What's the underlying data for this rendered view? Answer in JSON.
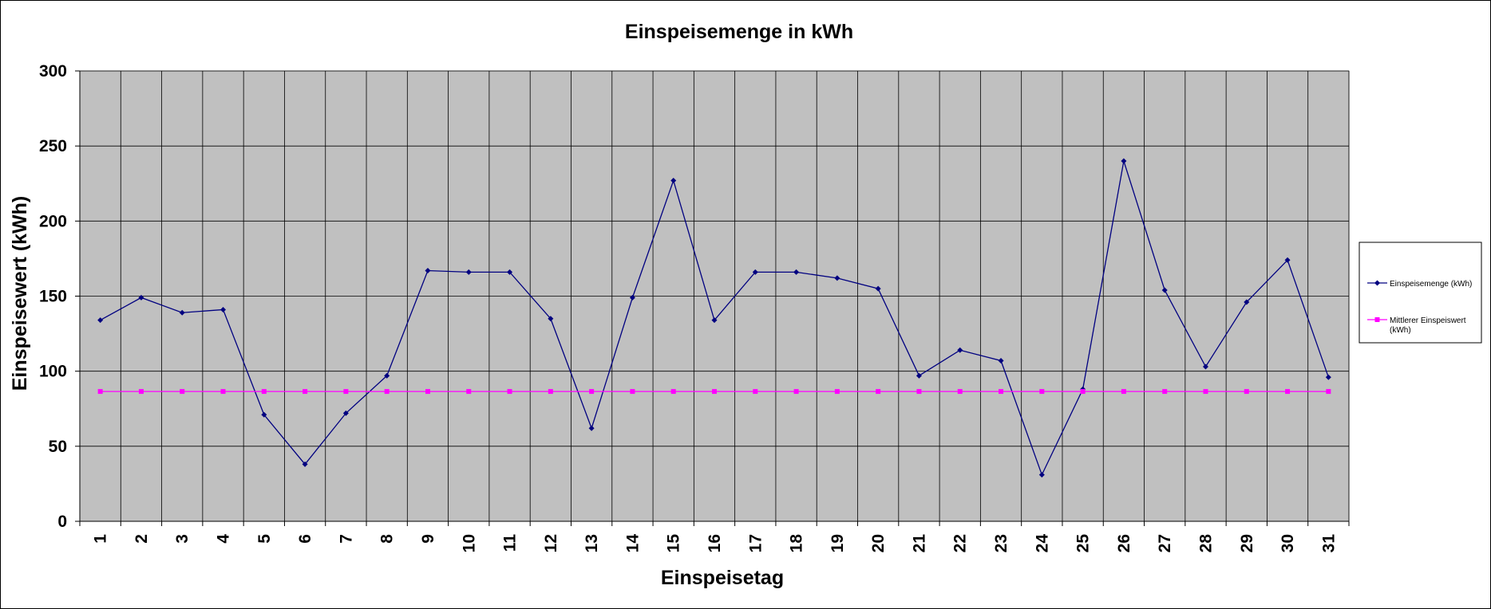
{
  "chart_data": {
    "type": "line",
    "title": "Einspeisemenge in kWh",
    "xlabel": "Einspeisetag",
    "ylabel": "Einspeisewert  (kWh)",
    "categories": [
      "1",
      "2",
      "3",
      "4",
      "5",
      "6",
      "7",
      "8",
      "9",
      "10",
      "11",
      "12",
      "13",
      "14",
      "15",
      "16",
      "17",
      "18",
      "19",
      "20",
      "21",
      "22",
      "23",
      "24",
      "25",
      "26",
      "27",
      "28",
      "29",
      "30",
      "31"
    ],
    "ylim": [
      0,
      300
    ],
    "yticks": [
      "0",
      "50",
      "100",
      "150",
      "200",
      "250",
      "300"
    ],
    "grid": true,
    "legend_position": "right",
    "colors": {
      "plot_background": "#c0c0c0",
      "series1": "#000080",
      "series2": "#ff00ff"
    },
    "series": [
      {
        "name": "Einspeisemenge (kWh)",
        "marker": "diamond",
        "values": [
          134,
          149,
          139,
          141,
          71,
          38,
          72,
          97,
          167,
          166,
          166,
          135,
          62,
          149,
          227,
          134,
          166,
          166,
          162,
          155,
          97,
          114,
          107,
          31,
          88,
          240,
          154,
          103,
          146,
          174,
          96
        ]
      },
      {
        "name_lines": [
          "Mittlerer Einspeiswert",
          "(kWh)"
        ],
        "marker": "square",
        "values": [
          86.5,
          86.5,
          86.5,
          86.5,
          86.5,
          86.5,
          86.5,
          86.5,
          86.5,
          86.5,
          86.5,
          86.5,
          86.5,
          86.5,
          86.5,
          86.5,
          86.5,
          86.5,
          86.5,
          86.5,
          86.5,
          86.5,
          86.5,
          86.5,
          86.5,
          86.5,
          86.5,
          86.5,
          86.5,
          86.5,
          86.5
        ]
      }
    ]
  }
}
